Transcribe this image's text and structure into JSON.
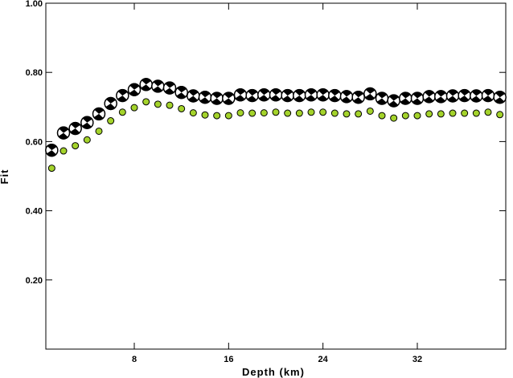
{
  "chart_data": {
    "type": "scatter",
    "xlabel": "Depth (km)",
    "ylabel": "Fit",
    "xlim": [
      0.5,
      39.5
    ],
    "ylim": [
      0.0,
      1.0
    ],
    "xticks": [
      8,
      16,
      24,
      32
    ],
    "xtick_labels": [
      "8",
      "16",
      "24",
      "32"
    ],
    "yticks": [
      0.2,
      0.4,
      0.6,
      0.8,
      1.0
    ],
    "ytick_labels": [
      "0.20",
      "0.40",
      "0.60",
      "0.80",
      "1.00"
    ],
    "grid": false,
    "series": [
      {
        "marker": "focal-mechanism",
        "color": "#000000",
        "x": [
          1,
          2,
          3,
          4,
          5,
          6,
          7,
          8,
          9,
          10,
          11,
          12,
          13,
          14,
          15,
          16,
          17,
          18,
          19,
          20,
          21,
          22,
          23,
          24,
          25,
          26,
          27,
          28,
          29,
          30,
          31,
          32,
          33,
          34,
          35,
          36,
          37,
          38,
          39
        ],
        "y": [
          0.575,
          0.625,
          0.638,
          0.655,
          0.68,
          0.71,
          0.733,
          0.75,
          0.765,
          0.76,
          0.755,
          0.742,
          0.732,
          0.728,
          0.725,
          0.725,
          0.735,
          0.733,
          0.735,
          0.735,
          0.733,
          0.733,
          0.735,
          0.735,
          0.733,
          0.73,
          0.728,
          0.738,
          0.725,
          0.718,
          0.725,
          0.725,
          0.73,
          0.73,
          0.732,
          0.733,
          0.732,
          0.733,
          0.728
        ]
      },
      {
        "marker": "circle",
        "color": "#a4d32b",
        "x": [
          1,
          2,
          3,
          4,
          5,
          6,
          7,
          8,
          9,
          10,
          11,
          12,
          13,
          14,
          15,
          16,
          17,
          18,
          19,
          20,
          21,
          22,
          23,
          24,
          25,
          26,
          27,
          28,
          29,
          30,
          31,
          32,
          33,
          34,
          35,
          36,
          37,
          38,
          39
        ],
        "y": [
          0.523,
          0.573,
          0.588,
          0.605,
          0.63,
          0.66,
          0.685,
          0.698,
          0.715,
          0.708,
          0.705,
          0.695,
          0.683,
          0.677,
          0.675,
          0.675,
          0.683,
          0.682,
          0.683,
          0.685,
          0.682,
          0.682,
          0.685,
          0.685,
          0.682,
          0.68,
          0.68,
          0.688,
          0.675,
          0.668,
          0.675,
          0.675,
          0.68,
          0.68,
          0.682,
          0.682,
          0.682,
          0.685,
          0.678
        ]
      }
    ]
  }
}
